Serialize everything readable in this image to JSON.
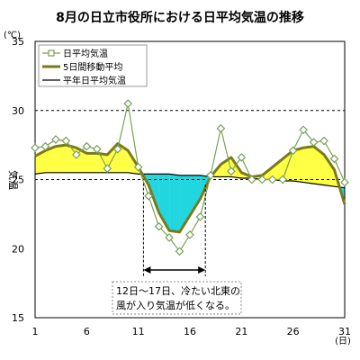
{
  "chart_data": {
    "type": "line",
    "title": "8月の日立市役所における日平均気温の推移",
    "xlabel": "(日)",
    "ylabel": "気温",
    "y_unit": "(℃)",
    "xlim": [
      1,
      31
    ],
    "ylim": [
      15,
      35
    ],
    "x_ticks": [
      1,
      6,
      11,
      16,
      21,
      26,
      31
    ],
    "y_ticks": [
      15,
      20,
      25,
      30,
      35
    ],
    "grid": "horizontal dashed at 25 and 30",
    "legend_position": "top-left",
    "x": [
      1,
      2,
      3,
      4,
      5,
      6,
      7,
      8,
      9,
      10,
      11,
      12,
      13,
      14,
      15,
      16,
      17,
      18,
      19,
      20,
      21,
      22,
      23,
      24,
      25,
      26,
      27,
      28,
      29,
      30,
      31
    ],
    "series": [
      {
        "name": "日平均気温",
        "color": "#7aa05a",
        "marker": "open-diamond",
        "values": [
          27.3,
          27.4,
          27.9,
          27.8,
          26.8,
          27.4,
          27.2,
          25.8,
          27.2,
          30.5,
          25.9,
          23.8,
          21.6,
          20.8,
          19.8,
          21.0,
          22.3,
          25.3,
          28.7,
          25.6,
          26.6,
          25.0,
          25.0,
          25.0,
          25.0,
          27.1,
          28.6,
          27.7,
          27.8,
          26.5,
          24.8
        ]
      },
      {
        "name": "5日間移動平均",
        "color": "#7a7a1a",
        "values": [
          26.7,
          27.1,
          27.4,
          27.5,
          27.3,
          26.9,
          26.9,
          26.8,
          27.6,
          27.1,
          25.9,
          24.6,
          22.6,
          21.3,
          21.2,
          22.4,
          23.6,
          25.2,
          26.1,
          26.6,
          25.5,
          25.2,
          25.3,
          25.9,
          26.5,
          27.1,
          27.3,
          27.4,
          26.8,
          25.7,
          23.2
        ]
      },
      {
        "name": "平年日平均気温",
        "color": "#000000",
        "values": [
          25.4,
          25.5,
          25.5,
          25.5,
          25.5,
          25.5,
          25.5,
          25.5,
          25.5,
          25.5,
          25.4,
          25.4,
          25.4,
          25.4,
          25.3,
          25.3,
          25.3,
          25.2,
          25.2,
          25.2,
          25.1,
          25.1,
          25.0,
          25.0,
          24.9,
          24.9,
          24.8,
          24.7,
          24.6,
          24.5,
          24.4
        ]
      }
    ],
    "fill_colors": {
      "above_normal": "#ffff44",
      "below_normal": "#22d6e0"
    },
    "highlight_range": [
      12,
      17
    ],
    "annotation": [
      "12日～17日、冷たい北東の",
      "風が入り気温が低くなる。"
    ]
  }
}
